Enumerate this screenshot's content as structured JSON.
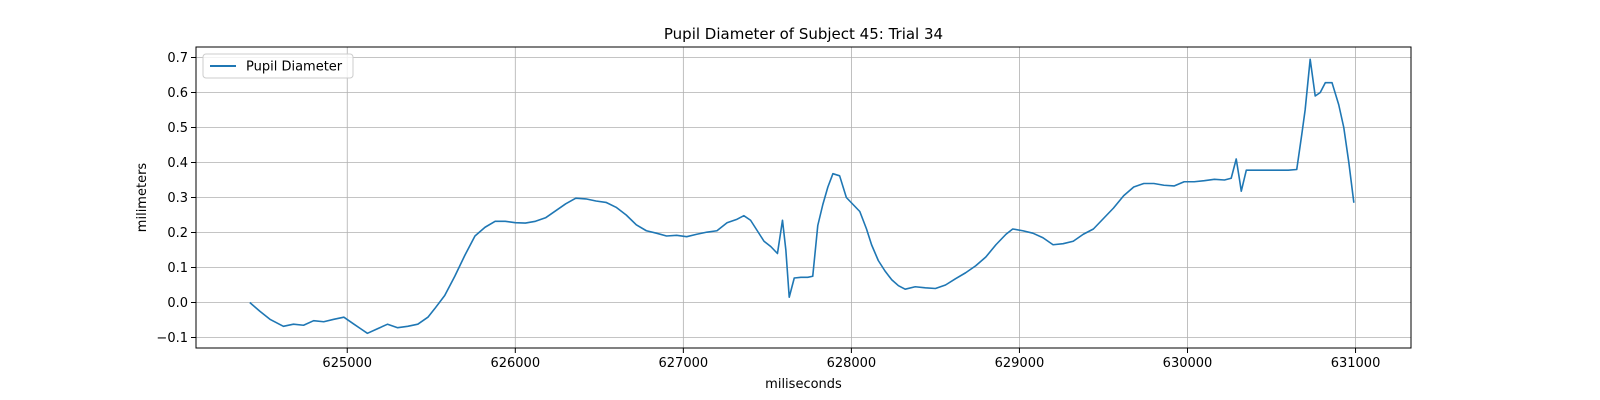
{
  "chart_data": {
    "type": "line",
    "title": "Pupil Diameter of Subject 45: Trial 34",
    "xlabel": "miliseconds",
    "ylabel": "milimeters",
    "xlim": [
      624100,
      631330
    ],
    "ylim": [
      -0.13,
      0.73
    ],
    "xticks": [
      625000,
      626000,
      627000,
      628000,
      629000,
      630000,
      631000
    ],
    "yticks": [
      -0.1,
      0.0,
      0.1,
      0.2,
      0.3,
      0.4,
      0.5,
      0.6,
      0.7
    ],
    "xtick_labels": [
      "625000",
      "626000",
      "627000",
      "628000",
      "629000",
      "630000",
      "631000"
    ],
    "ytick_labels": [
      "−0.1",
      "0.0",
      "0.1",
      "0.2",
      "0.3",
      "0.4",
      "0.5",
      "0.6",
      "0.7"
    ],
    "grid": true,
    "legend_position": "top-left",
    "series": [
      {
        "name": "Pupil Diameter",
        "color": "#1f77b4",
        "points": [
          [
            624420,
            0.0
          ],
          [
            624480,
            -0.025
          ],
          [
            624540,
            -0.048
          ],
          [
            624620,
            -0.068
          ],
          [
            624680,
            -0.062
          ],
          [
            624740,
            -0.065
          ],
          [
            624800,
            -0.052
          ],
          [
            624860,
            -0.055
          ],
          [
            624920,
            -0.048
          ],
          [
            624980,
            -0.042
          ],
          [
            625040,
            -0.062
          ],
          [
            625080,
            -0.075
          ],
          [
            625120,
            -0.088
          ],
          [
            625180,
            -0.075
          ],
          [
            625240,
            -0.062
          ],
          [
            625300,
            -0.072
          ],
          [
            625360,
            -0.068
          ],
          [
            625420,
            -0.062
          ],
          [
            625480,
            -0.042
          ],
          [
            625520,
            -0.018
          ],
          [
            625580,
            0.02
          ],
          [
            625640,
            0.075
          ],
          [
            625700,
            0.135
          ],
          [
            625760,
            0.19
          ],
          [
            625820,
            0.215
          ],
          [
            625880,
            0.232
          ],
          [
            625940,
            0.232
          ],
          [
            626000,
            0.228
          ],
          [
            626060,
            0.227
          ],
          [
            626120,
            0.232
          ],
          [
            626180,
            0.242
          ],
          [
            626240,
            0.262
          ],
          [
            626300,
            0.282
          ],
          [
            626360,
            0.298
          ],
          [
            626420,
            0.296
          ],
          [
            626480,
            0.29
          ],
          [
            626540,
            0.286
          ],
          [
            626600,
            0.272
          ],
          [
            626660,
            0.25
          ],
          [
            626720,
            0.222
          ],
          [
            626780,
            0.205
          ],
          [
            626840,
            0.198
          ],
          [
            626900,
            0.19
          ],
          [
            626960,
            0.192
          ],
          [
            627020,
            0.188
          ],
          [
            627080,
            0.195
          ],
          [
            627140,
            0.201
          ],
          [
            627200,
            0.205
          ],
          [
            627260,
            0.228
          ],
          [
            627320,
            0.238
          ],
          [
            627360,
            0.248
          ],
          [
            627400,
            0.235
          ],
          [
            627440,
            0.205
          ],
          [
            627480,
            0.175
          ],
          [
            627520,
            0.16
          ],
          [
            627560,
            0.14
          ],
          [
            627590,
            0.235
          ],
          [
            627610,
            0.15
          ],
          [
            627630,
            0.015
          ],
          [
            627660,
            0.07
          ],
          [
            627700,
            0.072
          ],
          [
            627740,
            0.072
          ],
          [
            627770,
            0.075
          ],
          [
            627800,
            0.22
          ],
          [
            627830,
            0.28
          ],
          [
            627860,
            0.33
          ],
          [
            627890,
            0.368
          ],
          [
            627930,
            0.362
          ],
          [
            627970,
            0.3
          ],
          [
            628010,
            0.28
          ],
          [
            628050,
            0.26
          ],
          [
            628090,
            0.21
          ],
          [
            628120,
            0.165
          ],
          [
            628160,
            0.12
          ],
          [
            628200,
            0.09
          ],
          [
            628240,
            0.065
          ],
          [
            628280,
            0.048
          ],
          [
            628320,
            0.038
          ],
          [
            628380,
            0.045
          ],
          [
            628440,
            0.042
          ],
          [
            628500,
            0.04
          ],
          [
            628560,
            0.05
          ],
          [
            628620,
            0.068
          ],
          [
            628680,
            0.085
          ],
          [
            628740,
            0.105
          ],
          [
            628800,
            0.13
          ],
          [
            628860,
            0.165
          ],
          [
            628920,
            0.195
          ],
          [
            628960,
            0.21
          ],
          [
            629020,
            0.205
          ],
          [
            629080,
            0.198
          ],
          [
            629140,
            0.185
          ],
          [
            629200,
            0.165
          ],
          [
            629260,
            0.168
          ],
          [
            629320,
            0.175
          ],
          [
            629380,
            0.195
          ],
          [
            629440,
            0.21
          ],
          [
            629500,
            0.24
          ],
          [
            629560,
            0.27
          ],
          [
            629620,
            0.305
          ],
          [
            629680,
            0.33
          ],
          [
            629740,
            0.34
          ],
          [
            629800,
            0.34
          ],
          [
            629860,
            0.335
          ],
          [
            629920,
            0.333
          ],
          [
            629980,
            0.345
          ],
          [
            630040,
            0.345
          ],
          [
            630100,
            0.348
          ],
          [
            630160,
            0.352
          ],
          [
            630220,
            0.35
          ],
          [
            630260,
            0.355
          ],
          [
            630290,
            0.41
          ],
          [
            630310,
            0.35
          ],
          [
            630320,
            0.318
          ],
          [
            630350,
            0.378
          ],
          [
            630400,
            0.378
          ],
          [
            630500,
            0.378
          ],
          [
            630600,
            0.378
          ],
          [
            630650,
            0.38
          ],
          [
            630680,
            0.48
          ],
          [
            630700,
            0.55
          ],
          [
            630730,
            0.695
          ],
          [
            630760,
            0.59
          ],
          [
            630790,
            0.6
          ],
          [
            630820,
            0.628
          ],
          [
            630860,
            0.628
          ],
          [
            630900,
            0.565
          ],
          [
            630930,
            0.5
          ],
          [
            630960,
            0.4
          ],
          [
            630990,
            0.285
          ]
        ]
      }
    ]
  }
}
